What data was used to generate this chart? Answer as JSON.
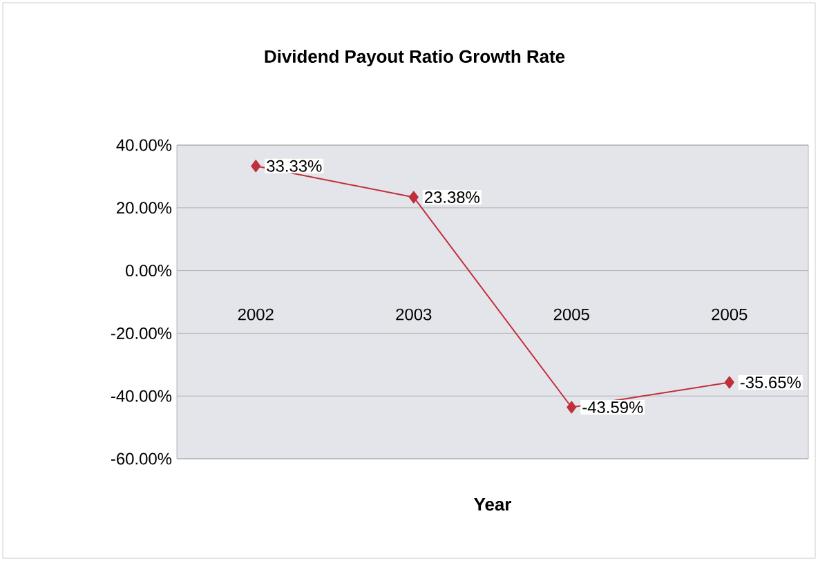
{
  "chart_data": {
    "type": "line",
    "title": "Dividend Payout Ratio Growth Rate",
    "xlabel": "Year",
    "categories": [
      "2002",
      "2003",
      "2005",
      "2005"
    ],
    "series": [
      {
        "color": "#c0303a",
        "values": [
          33.33,
          23.38,
          -43.59,
          -35.65
        ],
        "value_labels": [
          "33.33%",
          "23.38%",
          "-43.59%",
          "-35.65%"
        ]
      }
    ],
    "ylim": [
      -60,
      40
    ],
    "yticks": [
      {
        "value": -60,
        "label": "-60.00%"
      },
      {
        "value": -40,
        "label": "-40.00%"
      },
      {
        "value": -20,
        "label": "-20.00%"
      },
      {
        "value": 0,
        "label": "0.00%"
      },
      {
        "value": 20,
        "label": "20.00%"
      },
      {
        "value": 40,
        "label": "40.00%"
      }
    ],
    "grid": "y",
    "marker": "diamond",
    "line_style": "solid"
  }
}
